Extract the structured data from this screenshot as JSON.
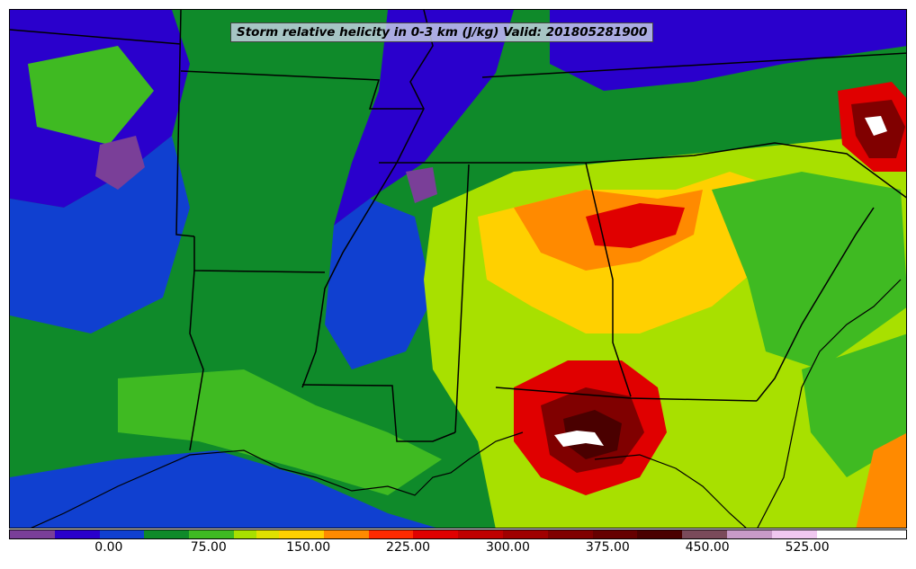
{
  "title": "Storm relative helicity in 0-3 km (J/kg) Valid: 201805281900",
  "colorbar": {
    "colors": [
      "#7a3f98",
      "#7a3f98",
      "#2a00cc",
      "#2a00cc",
      "#1040d0",
      "#1040d0",
      "#0f8a2a",
      "#0f8a2a",
      "#3fba22",
      "#3fba22",
      "#a8e000",
      "#e0e000",
      "#ffd000",
      "#ffd000",
      "#ff8a00",
      "#ff8a00",
      "#ff2a00",
      "#ff2a00",
      "#e00000",
      "#e00000",
      "#c00000",
      "#c00000",
      "#a00000",
      "#a00000",
      "#800000",
      "#800000",
      "#660000",
      "#660000",
      "#4a0000",
      "#4a0000",
      "#7a4a5a",
      "#7a4a5a",
      "#c89ac8",
      "#c89ac8",
      "#f0c8f0",
      "#f0c8f0",
      "#ffffff",
      "#ffffff",
      "#ffffff",
      "#ffffff"
    ],
    "ticks": [
      {
        "label": "0.00",
        "value": 0
      },
      {
        "label": "75.00",
        "value": 75
      },
      {
        "label": "150.00",
        "value": 150
      },
      {
        "label": "225.00",
        "value": 225
      },
      {
        "label": "300.00",
        "value": 300
      },
      {
        "label": "375.00",
        "value": 375
      },
      {
        "label": "450.00",
        "value": 450
      },
      {
        "label": "525.00",
        "value": 525
      }
    ],
    "range": [
      -75,
      600
    ]
  }
}
